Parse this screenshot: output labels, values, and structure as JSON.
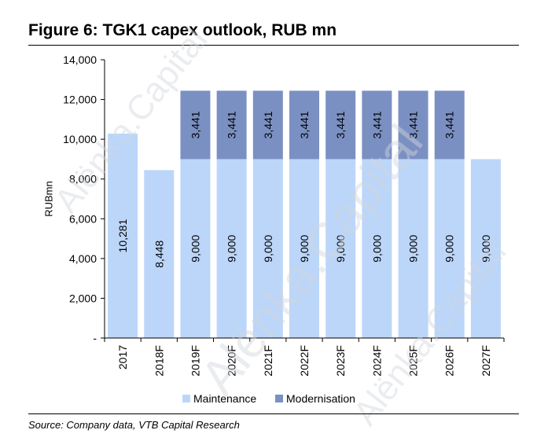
{
  "figure": {
    "title": "Figure 6: TGK1 capex outlook, RUB mn",
    "source": "Source: Company data, VTB Capital Research",
    "watermark": "Alёnka.Capital"
  },
  "colors": {
    "maintenance": "#bcd6fa",
    "modernisation": "#7b90c2",
    "axis": "#000000",
    "watermark": "#d2d7dd"
  },
  "chart_data": {
    "type": "bar",
    "stacked": true,
    "categories": [
      "2017",
      "2018F",
      "2019F",
      "2020F",
      "2021F",
      "2022F",
      "2023F",
      "2024F",
      "2025F",
      "2026F",
      "2027F"
    ],
    "series": [
      {
        "name": "Maintenance",
        "values": [
          10281,
          8448,
          9000,
          9000,
          9000,
          9000,
          9000,
          9000,
          9000,
          9000,
          9000
        ],
        "labels": [
          "10,281",
          "8,448",
          "9,000",
          "9,000",
          "9,000",
          "9,000",
          "9,000",
          "9,000",
          "9,000",
          "9,000",
          "9,000"
        ]
      },
      {
        "name": "Modernisation",
        "values": [
          0,
          0,
          3441,
          3441,
          3441,
          3441,
          3441,
          3441,
          3441,
          3441,
          0
        ],
        "labels": [
          "",
          "",
          "3,441",
          "3,441",
          "3,441",
          "3,441",
          "3,441",
          "3,441",
          "3,441",
          "3,441",
          ""
        ]
      }
    ],
    "ylabel": "RUBmn",
    "ylim": [
      0,
      14000
    ],
    "yticks": [
      0,
      2000,
      4000,
      6000,
      8000,
      10000,
      12000,
      14000
    ],
    "ytick_labels": [
      "-",
      "2,000",
      "4,000",
      "6,000",
      "8,000",
      "10,000",
      "12,000",
      "14,000"
    ],
    "grid": false,
    "legend_position": "bottom"
  }
}
